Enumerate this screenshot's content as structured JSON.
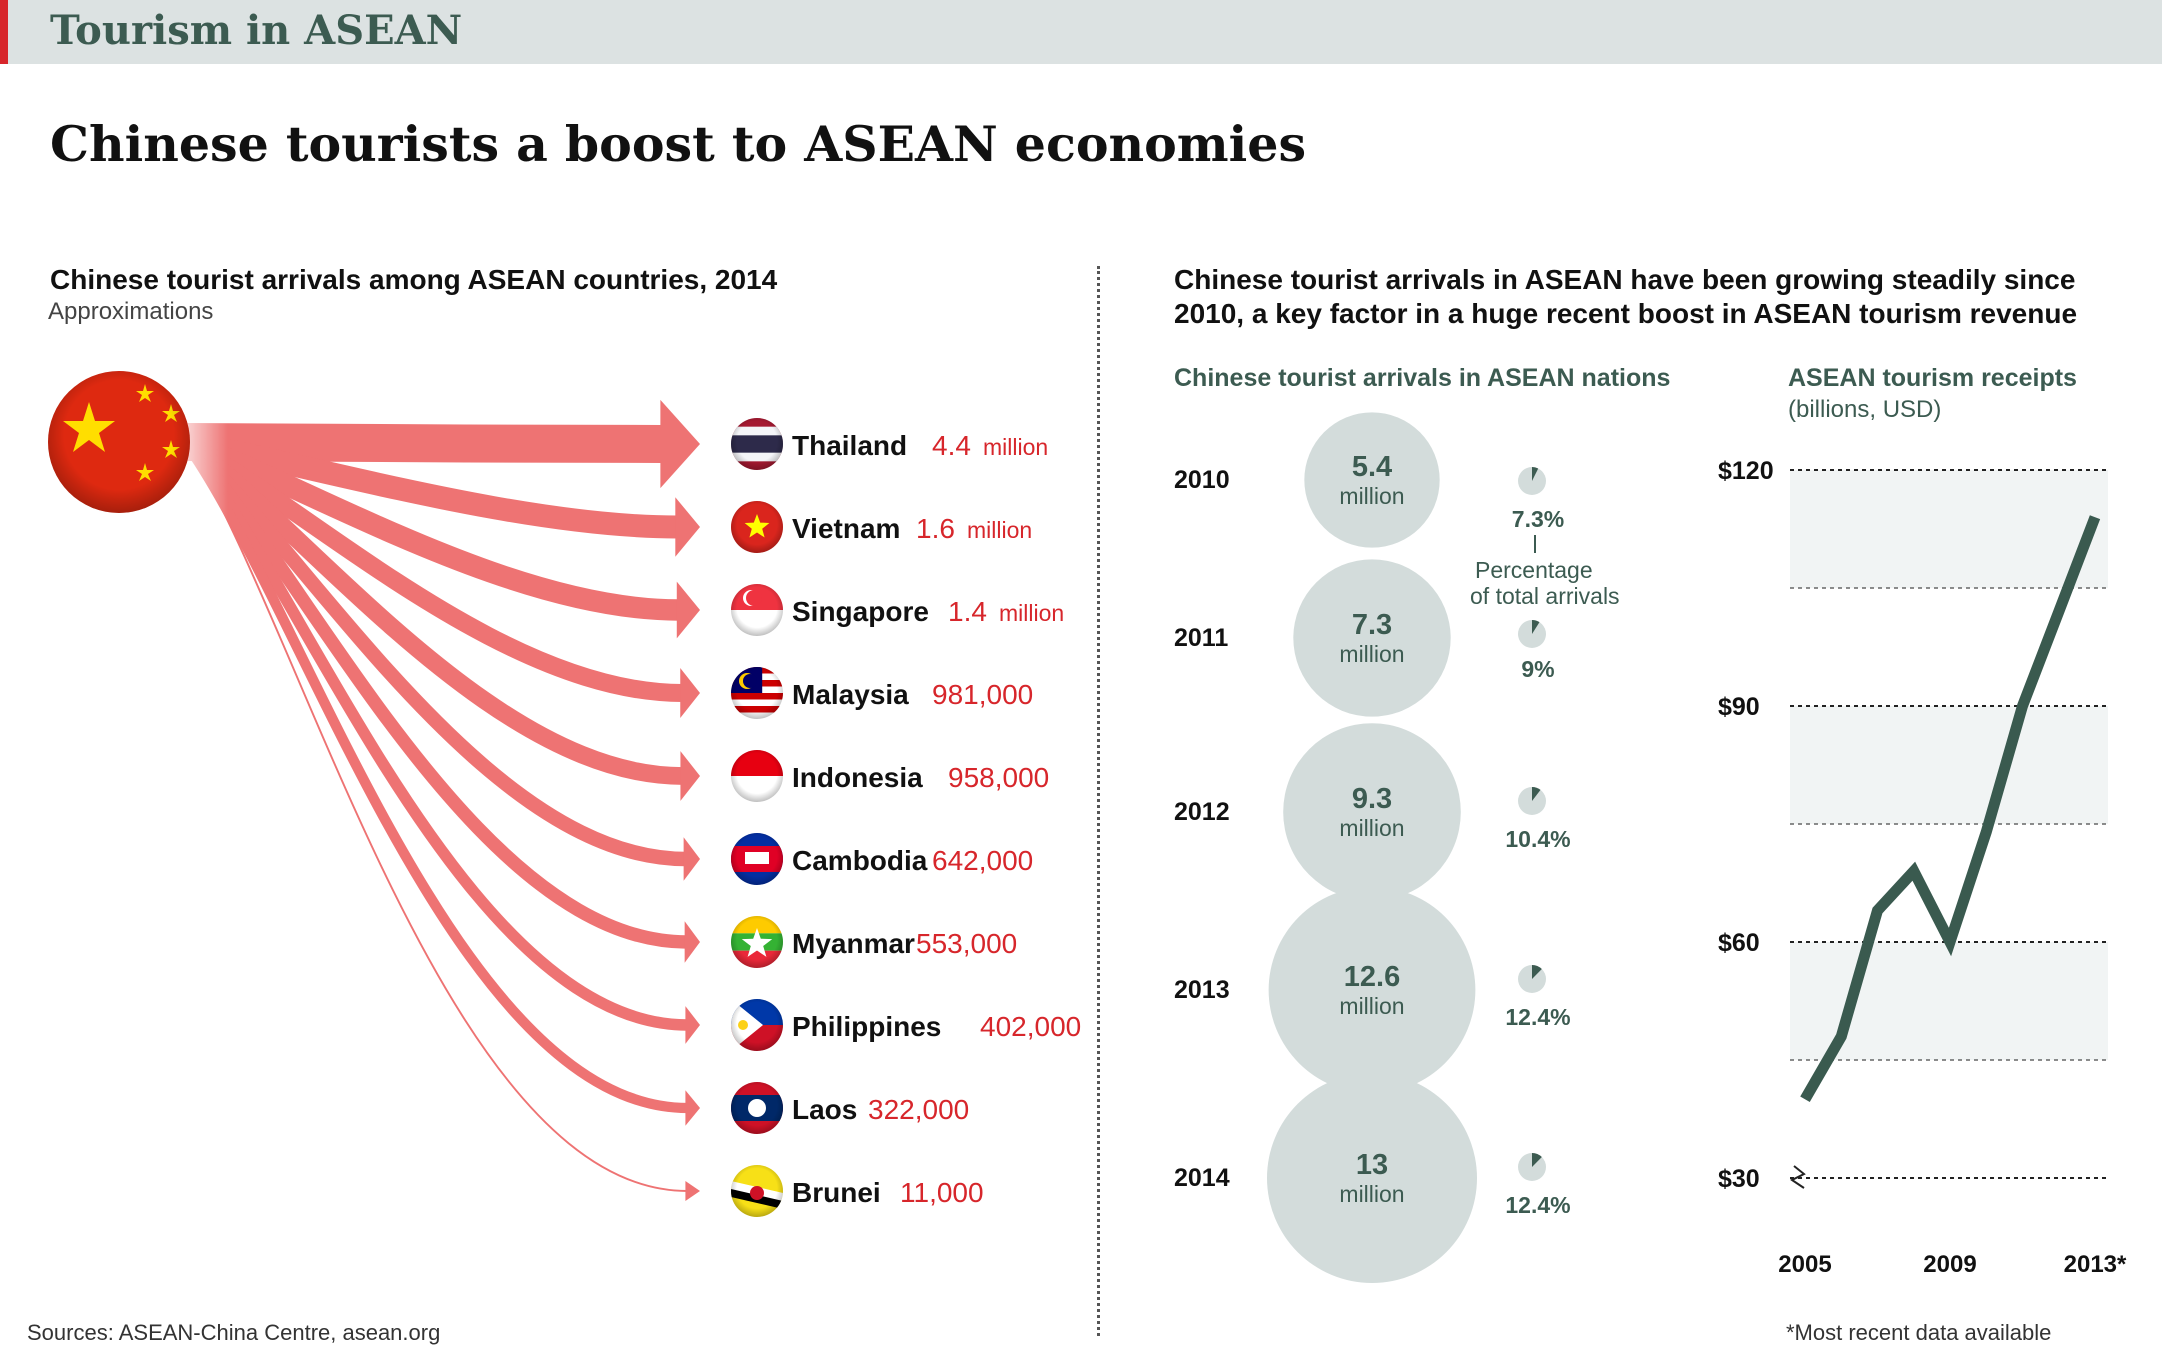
{
  "header": {
    "section": "Tourism in ASEAN",
    "title": "Chinese tourists a boost to ASEAN economies"
  },
  "left_panel": {
    "title": "Chinese tourist arrivals among ASEAN countries, 2014",
    "note": "Approximations"
  },
  "right_panel": {
    "title_line1": "Chinese tourist arrivals in ASEAN have been growing steadily since",
    "title_line2": "2010, a key factor in a huge recent boost in ASEAN tourism revenue"
  },
  "colors": {
    "arrow": "#ee7373",
    "value_red": "#d7262b",
    "dark_green": "#3c5b51",
    "bubble": "#d3dcdb",
    "band": "#f1f4f4"
  },
  "sources": "Sources: ASEAN-China Centre, asean.org",
  "footnote": "*Most recent data available",
  "legend_note": {
    "line1": "Percentage",
    "line2": "of total arrivals"
  },
  "chart_data": [
    {
      "type": "bar",
      "title": "Chinese tourist arrivals among ASEAN countries, 2014",
      "categories": [
        "Thailand",
        "Vietnam",
        "Singapore",
        "Malaysia",
        "Indonesia",
        "Cambodia",
        "Myanmar",
        "Philippines",
        "Laos",
        "Brunei"
      ],
      "values": [
        4400000,
        1600000,
        1400000,
        981000,
        958000,
        642000,
        553000,
        402000,
        322000,
        11000
      ],
      "value_labels": [
        {
          "num": "4.4",
          "unit": "million"
        },
        {
          "num": "1.6",
          "unit": "million"
        },
        {
          "num": "1.4",
          "unit": "million"
        },
        {
          "num": "981,000",
          "unit": ""
        },
        {
          "num": "958,000",
          "unit": ""
        },
        {
          "num": "642,000",
          "unit": ""
        },
        {
          "num": "553,000",
          "unit": ""
        },
        {
          "num": "402,000",
          "unit": ""
        },
        {
          "num": "322,000",
          "unit": ""
        },
        {
          "num": "11,000",
          "unit": ""
        }
      ],
      "flags": [
        "thailand-flag",
        "vietnam-flag",
        "singapore-flag",
        "malaysia-flag",
        "indonesia-flag",
        "cambodia-flag",
        "myanmar-flag",
        "philippines-flag",
        "laos-flag",
        "brunei-flag"
      ],
      "origin": "china-flag"
    },
    {
      "type": "bubble",
      "title": "Chinese tourist arrivals in ASEAN nations",
      "x": [
        "2010",
        "2011",
        "2012",
        "2013",
        "2014"
      ],
      "values": [
        5.4,
        7.3,
        9.3,
        12.6,
        13
      ],
      "value_labels": [
        "5.4",
        "7.3",
        "9.3",
        "12.6",
        "13"
      ],
      "unit": "million",
      "percent_labels": [
        "7.3%",
        "9%",
        "10.4%",
        "12.4%",
        "12.4%"
      ],
      "percent_values": [
        7.3,
        9,
        10.4,
        12.4,
        12.4
      ]
    },
    {
      "type": "line",
      "title": "ASEAN tourism receipts",
      "subtitle": "(billions, USD)",
      "x": [
        2005,
        2006,
        2007,
        2008,
        2009,
        2010,
        2011,
        2012,
        2013
      ],
      "values": [
        40,
        48,
        64,
        69,
        60,
        74,
        90,
        102,
        114
      ],
      "ylim": [
        30,
        120
      ],
      "yticks": [
        30,
        60,
        90,
        120
      ],
      "ytick_labels": [
        "$30",
        "$60",
        "$90",
        "$120"
      ],
      "xtick_labels": [
        "2005",
        "2009",
        "2013*"
      ],
      "xtick_values": [
        2005,
        2009,
        2013
      ],
      "grid": true,
      "axis_break": true
    }
  ]
}
